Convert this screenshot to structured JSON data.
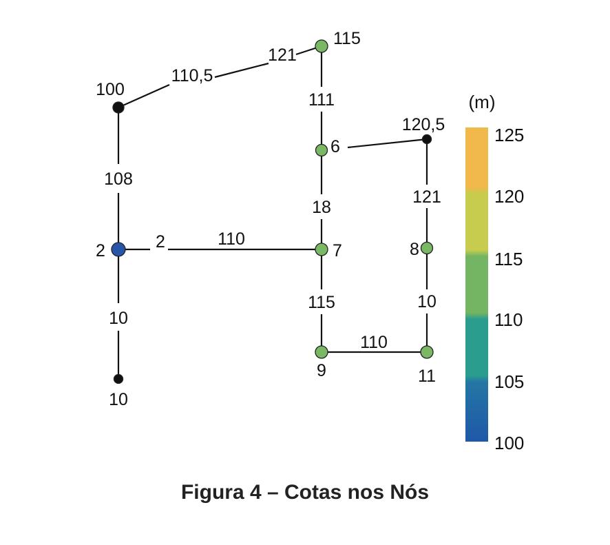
{
  "caption": "Figura 4 – Cotas nos Nós",
  "colorbar": {
    "unit": "(m)",
    "ticks": [
      "125",
      "120",
      "115",
      "110",
      "105",
      "100"
    ],
    "colors_top_to_bottom": [
      "#f1b84c",
      "#c8cc4e",
      "#73b562",
      "#2a9d8e",
      "#2476a4",
      "#1f58a9"
    ]
  },
  "network": {
    "nodes": [
      {
        "id": "n-top",
        "label": "115",
        "elevation": 115,
        "color": "#7ab865"
      },
      {
        "id": "n-100",
        "label": "100",
        "color": "#111111"
      },
      {
        "id": "n-6",
        "label": "6",
        "color": "#7ab865"
      },
      {
        "id": "n-1205",
        "label": "120,5",
        "color": "#111111"
      },
      {
        "id": "n-2",
        "label": "2",
        "color": "#2756a8"
      },
      {
        "id": "n-7",
        "label": "7",
        "color": "#7ab865"
      },
      {
        "id": "n-8",
        "label": "8",
        "color": "#7ab865"
      },
      {
        "id": "n-9",
        "label": "9",
        "color": "#7ab865"
      },
      {
        "id": "n-11",
        "label": "11",
        "color": "#7ab865"
      },
      {
        "id": "n-10",
        "label": "10",
        "color": "#111111"
      }
    ],
    "pipe_labels": {
      "p1": "121",
      "p2": "110,5",
      "p3": "111",
      "p4": "108",
      "p5": "18",
      "p6": "121",
      "p7": "2",
      "p8": "110",
      "p9": "115",
      "p10": "10",
      "p11": "10",
      "p12": "110"
    }
  }
}
